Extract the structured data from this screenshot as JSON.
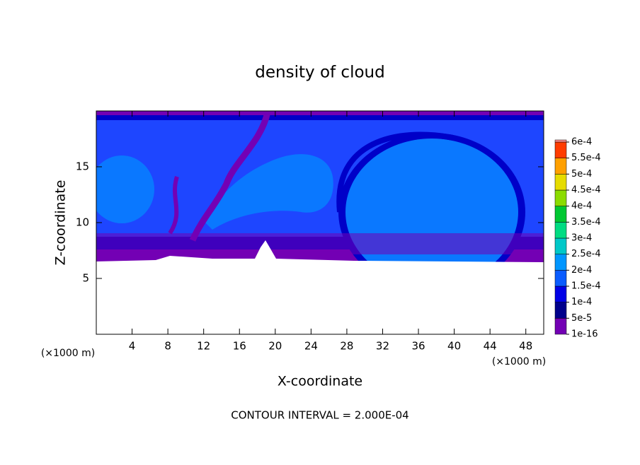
{
  "chart_data": {
    "type": "contour",
    "title": "density of cloud",
    "xlabel": "X-coordinate",
    "ylabel": "Z-coordinate",
    "x_unit": "(×1000 m)",
    "footnote": "CONTOUR INTERVAL = 2.000E-04",
    "xlim": [
      0,
      50
    ],
    "ylim": [
      0,
      20
    ],
    "xticks": [
      4,
      8,
      12,
      16,
      20,
      24,
      28,
      32,
      36,
      40,
      44,
      48
    ],
    "yticks": [
      5,
      10,
      15
    ],
    "colorbar": {
      "levels": [
        {
          "value": 1e-16,
          "label": "1e-16"
        },
        {
          "value": 5e-05,
          "label": "5e-5"
        },
        {
          "value": 0.0001,
          "label": "1e-4"
        },
        {
          "value": 0.00015,
          "label": "1.5e-4"
        },
        {
          "value": 0.0002,
          "label": "2e-4"
        },
        {
          "value": 0.00025,
          "label": "2.5e-4"
        },
        {
          "value": 0.0003,
          "label": "3e-4"
        },
        {
          "value": 0.00035,
          "label": "3.5e-4"
        },
        {
          "value": 0.0004,
          "label": "4e-4"
        },
        {
          "value": 0.00045,
          "label": "4.5e-4"
        },
        {
          "value": 0.0005,
          "label": "5e-4"
        },
        {
          "value": 0.00055,
          "label": "5.5e-4"
        },
        {
          "value": 0.0006,
          "label": "6e-4"
        }
      ],
      "colors": [
        "#7300b4",
        "#00008c",
        "#0000e6",
        "#0a5cff",
        "#0096ff",
        "#00c8c8",
        "#00dc82",
        "#00c832",
        "#8cdc00",
        "#e6dc00",
        "#ffa000",
        "#ff3c00",
        "#ff8c8c"
      ]
    }
  }
}
